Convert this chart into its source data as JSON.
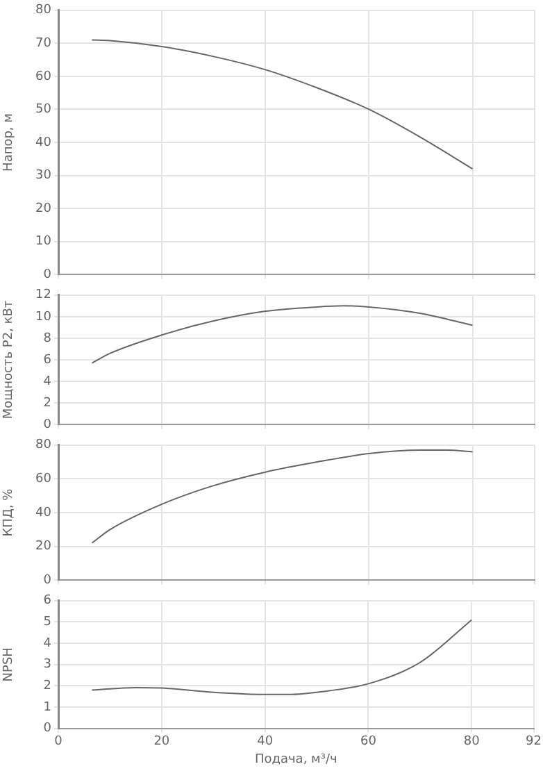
{
  "chart_data": [
    {
      "type": "line",
      "ylabel": "Напор, м",
      "x": [
        6.5,
        10,
        20,
        30,
        40,
        50,
        60,
        70,
        80
      ],
      "values": [
        71,
        70.8,
        69,
        66,
        62,
        56.5,
        50,
        41.5,
        32
      ],
      "color": "#666666",
      "marker": "none",
      "xlim": [
        0,
        92
      ],
      "xticks": [
        0,
        20,
        40,
        60,
        80,
        92
      ],
      "ylim": [
        0,
        80
      ],
      "yticks": [
        0,
        10,
        20,
        30,
        40,
        50,
        60,
        70,
        80
      ],
      "grid": true,
      "tick_labels": "y"
    },
    {
      "type": "line",
      "ylabel": "Мощность P2, кВт",
      "x": [
        6.5,
        10,
        20,
        30,
        40,
        50,
        55,
        60,
        70,
        80
      ],
      "values": [
        5.7,
        6.6,
        8.3,
        9.6,
        10.5,
        10.9,
        11,
        10.9,
        10.3,
        9.2
      ],
      "color": "#666666",
      "marker": "none",
      "xlim": [
        0,
        92
      ],
      "xticks": [
        0,
        20,
        40,
        60,
        80,
        92
      ],
      "ylim": [
        0,
        12
      ],
      "yticks": [
        0,
        2,
        4,
        6,
        8,
        10,
        12
      ],
      "grid": true,
      "tick_labels": "y"
    },
    {
      "type": "line",
      "ylabel": "КПД, %",
      "x": [
        6.5,
        10,
        20,
        30,
        40,
        50,
        60,
        70,
        75,
        80
      ],
      "values": [
        22,
        30,
        45,
        56,
        64,
        70,
        75,
        77,
        77,
        76
      ],
      "color": "#666666",
      "marker": "none",
      "xlim": [
        0,
        92
      ],
      "xticks": [
        0,
        20,
        40,
        60,
        80,
        92
      ],
      "ylim": [
        0,
        80
      ],
      "yticks": [
        0,
        20,
        40,
        60,
        80
      ],
      "grid": true,
      "tick_labels": "y"
    },
    {
      "type": "line",
      "ylabel": "NPSH",
      "xlabel": "Подача, м³/ч",
      "x": [
        6.5,
        15,
        20,
        30,
        40,
        45,
        50,
        60,
        70,
        80
      ],
      "values": [
        1.8,
        1.92,
        1.9,
        1.7,
        1.6,
        1.6,
        1.7,
        2.1,
        3.1,
        5.1
      ],
      "color": "#666666",
      "marker": "none",
      "xlim": [
        0,
        92
      ],
      "xticks": [
        0,
        20,
        40,
        60,
        80,
        92
      ],
      "ylim": [
        0,
        6
      ],
      "yticks": [
        0,
        1,
        2,
        3,
        4,
        5,
        6
      ],
      "grid": true
    }
  ]
}
